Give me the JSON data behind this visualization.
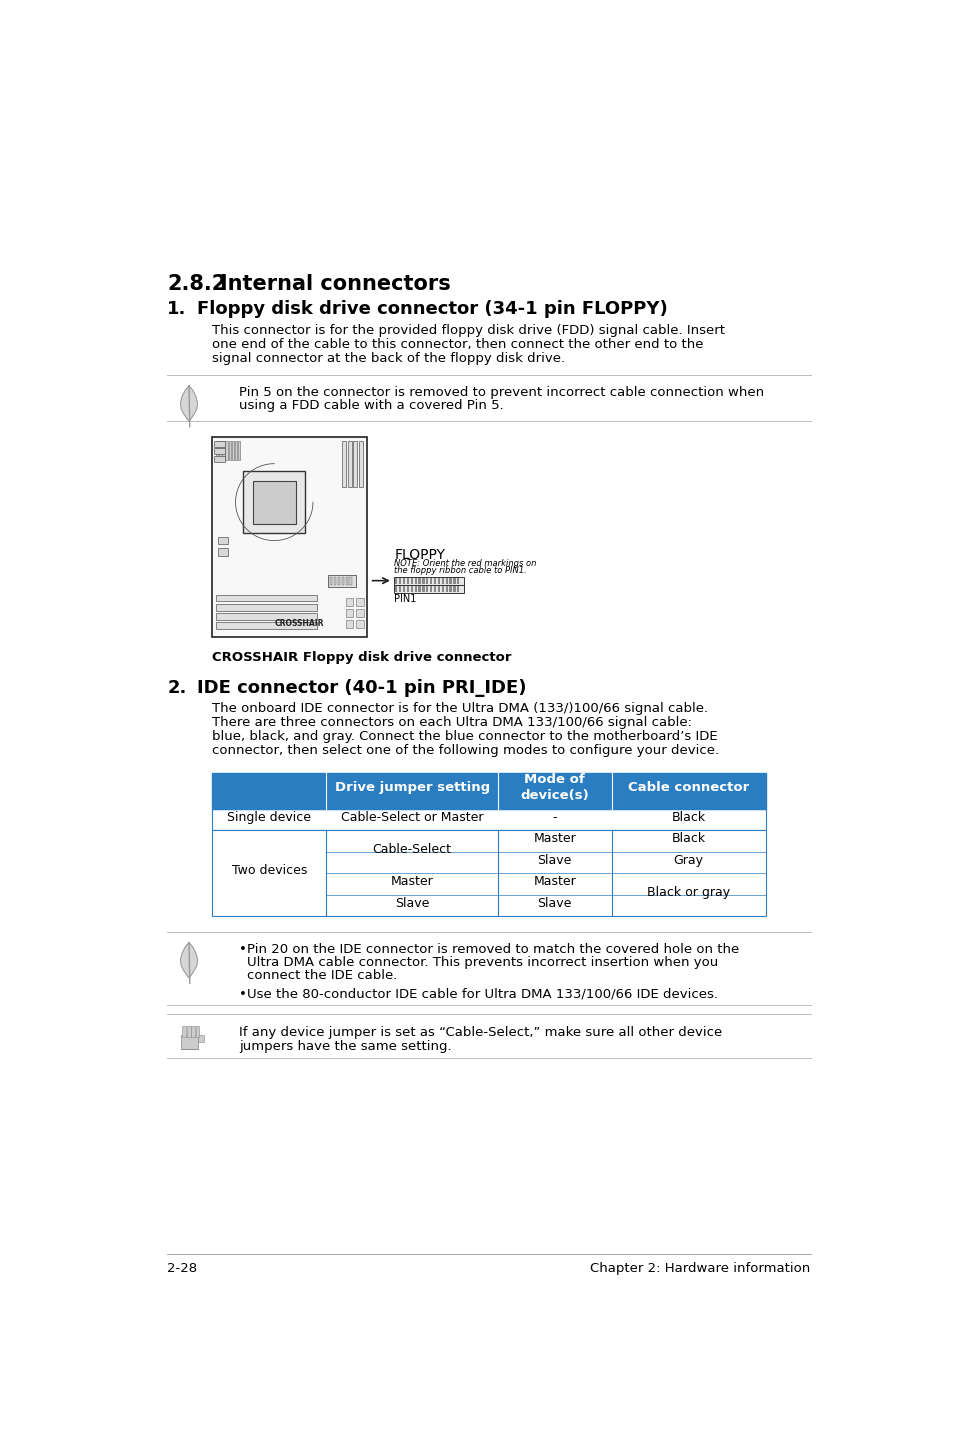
{
  "bg_color": "#ffffff",
  "section_title_num": "2.8.2",
  "section_title_text": "Internal connectors",
  "section1_num": "1.",
  "section1_title": "Floppy disk drive connector (34-1 pin FLOPPY)",
  "section1_body_lines": [
    "This connector is for the provided floppy disk drive (FDD) signal cable. Insert",
    "one end of the cable to this connector, then connect the other end to the",
    "signal connector at the back of the floppy disk drive."
  ],
  "note1_text_lines": [
    "Pin 5 on the connector is removed to prevent incorrect cable connection when",
    "using a FDD cable with a covered Pin 5."
  ],
  "img_caption": "CROSSHAIR Floppy disk drive connector",
  "floppy_label": "FLOPPY",
  "floppy_note_line1": "NOTE: Orient the red markings on",
  "floppy_note_line2": "the floppy ribbon cable to PIN1.",
  "pin1_label": "PIN1",
  "section2_num": "2.",
  "section2_title": "IDE connector (40-1 pin PRI_IDE)",
  "section2_body_lines": [
    "The onboard IDE connector is for the Ultra DMA (133/)100/66 signal cable.",
    "There are three connectors on each Ultra DMA 133/100/66 signal cable:",
    "blue, black, and gray. Connect the blue connector to the motherboard’s IDE",
    "connector, then select one of the following modes to configure your device."
  ],
  "table_header_bg": "#2b7dc2",
  "table_header_color": "#ffffff",
  "table_col2_header": "Drive jumper setting",
  "table_col3_header": "Mode of\ndevice(s)",
  "table_col4_header": "Cable connector",
  "note2_bullet1_lines": [
    "Pin 20 on the IDE connector is removed to match the covered hole on the",
    "Ultra DMA cable connector. This prevents incorrect insertion when you",
    "connect the IDE cable."
  ],
  "note2_bullet2": "Use the 80-conductor IDE cable for Ultra DMA 133/100/66 IDE devices.",
  "note3_text_lines": [
    "If any device jumper is set as “Cable-Select,” make sure all other device",
    "jumpers have the same setting."
  ],
  "footer_left": "2-28",
  "footer_right": "Chapter 2: Hardware information",
  "body_fs": 9.5,
  "header_fs": 13,
  "section_fs": 15,
  "table_line_color": "#2b7dc2",
  "text_color": "#000000",
  "line_color": "#bbbbbb"
}
